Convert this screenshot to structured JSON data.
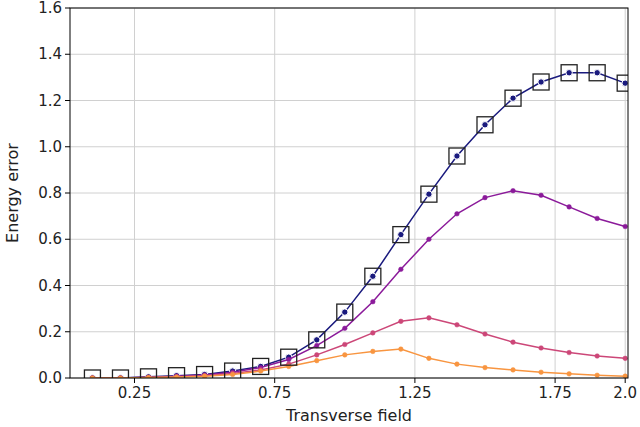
{
  "chart_data": {
    "type": "line",
    "x_label": "Transverse field",
    "y_label": "Energy error",
    "x": [
      0.1,
      0.2,
      0.3,
      0.4,
      0.5,
      0.6,
      0.7,
      0.8,
      0.9,
      1.0,
      1.1,
      1.2,
      1.3,
      1.4,
      1.5,
      1.6,
      1.7,
      1.8,
      1.9,
      2.0
    ],
    "series": [
      {
        "color": "#1a1a7e",
        "marker": "circle",
        "line_style": "solid",
        "values": [
          0.0,
          0.0,
          0.005,
          0.01,
          0.015,
          0.03,
          0.05,
          0.09,
          0.165,
          0.285,
          0.44,
          0.62,
          0.795,
          0.96,
          1.095,
          1.21,
          1.28,
          1.32,
          1.32,
          1.275
        ]
      },
      {
        "color": "#8b1a9a",
        "marker": "circle",
        "line_style": "solid",
        "values": [
          0.0,
          0.0,
          0.003,
          0.008,
          0.013,
          0.025,
          0.045,
          0.08,
          0.14,
          0.215,
          0.33,
          0.47,
          0.6,
          0.71,
          0.78,
          0.81,
          0.79,
          0.74,
          0.69,
          0.655
        ]
      },
      {
        "color": "#cc4778",
        "marker": "circle",
        "line_style": "solid",
        "values": [
          0.0,
          0.0,
          0.002,
          0.005,
          0.01,
          0.02,
          0.035,
          0.06,
          0.1,
          0.145,
          0.195,
          0.245,
          0.26,
          0.23,
          0.19,
          0.155,
          0.13,
          0.11,
          0.095,
          0.085
        ]
      },
      {
        "color": "#f89540",
        "marker": "circle",
        "line_style": "solid",
        "values": [
          0.0,
          0.0,
          0.002,
          0.004,
          0.008,
          0.015,
          0.03,
          0.05,
          0.075,
          0.1,
          0.115,
          0.125,
          0.085,
          0.06,
          0.045,
          0.035,
          0.025,
          0.018,
          0.012,
          0.008
        ]
      },
      {
        "color": "#222222",
        "marker": "square",
        "line_style": "none",
        "values": [
          0.0,
          0.0,
          0.005,
          0.01,
          0.015,
          0.03,
          0.05,
          0.09,
          0.165,
          0.285,
          0.44,
          0.62,
          0.795,
          0.96,
          1.095,
          1.21,
          1.28,
          1.32,
          1.32,
          1.275
        ]
      }
    ],
    "xlim": [
      0.02,
      2.01
    ],
    "xticks": [
      0.25,
      0.75,
      1.25,
      1.75,
      {
        "value": 2,
        "label": "2.0"
      }
    ],
    "ylim": [
      0,
      1.6
    ],
    "yticks": [
      {
        "value": 0,
        "label": "0.0"
      },
      0.2,
      0.4,
      0.6,
      0.8,
      {
        "value": 1,
        "label": "1.0"
      },
      1.2,
      1.4,
      1.6
    ],
    "grid": true
  }
}
